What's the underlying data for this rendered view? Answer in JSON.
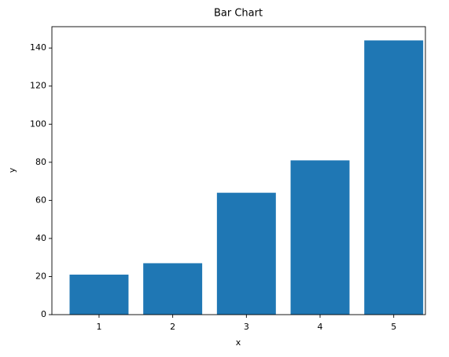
{
  "chart_data": {
    "type": "bar",
    "title": "Bar Chart",
    "x_label": "x",
    "y_label": "y",
    "x": [
      1,
      2,
      3,
      4,
      5
    ],
    "values": [
      21,
      27,
      64,
      81,
      144
    ],
    "color": "#1f77b4",
    "xlim": [
      0.36,
      5.43
    ],
    "xticks": [
      1,
      2,
      3,
      4,
      5
    ],
    "ylim": [
      0,
      151.2
    ],
    "yticks": [
      0,
      20,
      40,
      60,
      80,
      100,
      120,
      140
    ],
    "grid": false
  }
}
